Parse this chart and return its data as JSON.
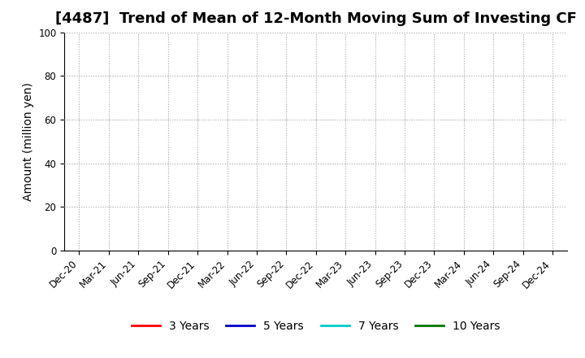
{
  "title": "[4487]  Trend of Mean of 12-Month Moving Sum of Investing CF",
  "ylabel": "Amount (million yen)",
  "ylim": [
    0,
    100
  ],
  "yticks": [
    0,
    20,
    40,
    60,
    80,
    100
  ],
  "xtick_labels": [
    "Dec-20",
    "Mar-21",
    "Jun-21",
    "Sep-21",
    "Dec-21",
    "Mar-22",
    "Jun-22",
    "Sep-22",
    "Dec-22",
    "Mar-23",
    "Jun-23",
    "Sep-23",
    "Dec-23",
    "Mar-24",
    "Jun-24",
    "Sep-24",
    "Dec-24"
  ],
  "legend_entries": [
    {
      "label": "3 Years",
      "color": "#FF0000"
    },
    {
      "label": "5 Years",
      "color": "#0000CC"
    },
    {
      "label": "7 Years",
      "color": "#00CCCC"
    },
    {
      "label": "10 Years",
      "color": "#007700"
    }
  ],
  "background_color": "#FFFFFF",
  "grid_color": "#BBBBBB",
  "title_fontsize": 13,
  "axis_label_fontsize": 10,
  "tick_fontsize": 8.5,
  "legend_fontsize": 10
}
